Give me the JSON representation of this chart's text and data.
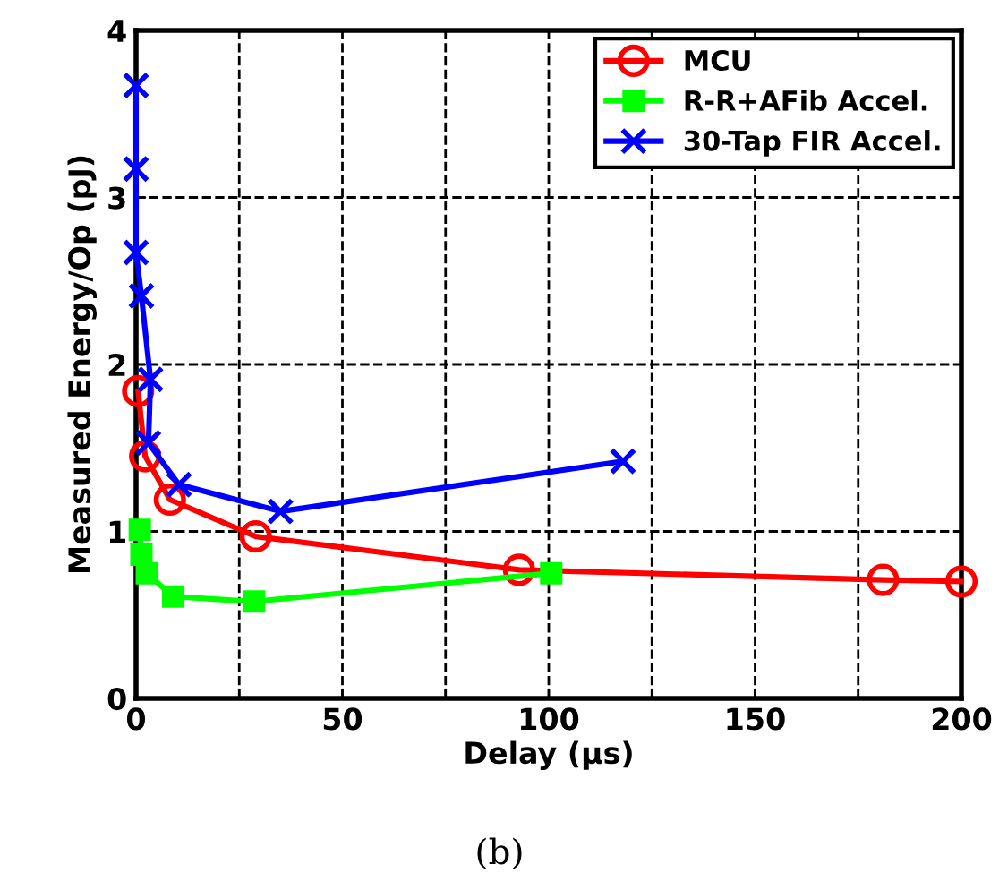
{
  "chart_data": {
    "type": "line",
    "xlabel": "Delay (μs)",
    "ylabel": "Measured Energy/Op (pJ)",
    "xlim": [
      0,
      200
    ],
    "ylim": [
      0,
      4
    ],
    "xticks": [
      0,
      {
        "value": 25,
        "label": null
      },
      50,
      {
        "value": 75,
        "label": null
      },
      100,
      {
        "value": 125,
        "label": null
      },
      150,
      {
        "value": 175,
        "label": null
      },
      200
    ],
    "yticks": [
      0,
      1,
      2,
      3,
      4
    ],
    "grid": true,
    "legend": "top right",
    "line_style": "solid",
    "series": [
      {
        "name": "MCU",
        "color": "#ff0000",
        "marker": "circle",
        "x": [
          0.5,
          2.2,
          8.2,
          29,
          92.8,
          181,
          200
        ],
        "values": [
          1.84,
          1.45,
          1.19,
          0.97,
          0.77,
          0.71,
          0.7
        ]
      },
      {
        "name": "R-R+AFib Accel.",
        "color": "#00ff00",
        "marker": "square",
        "x": [
          0.9,
          1.3,
          2.6,
          9,
          28.6,
          100.6
        ],
        "values": [
          1.01,
          0.86,
          0.75,
          0.61,
          0.58,
          0.75
        ]
      },
      {
        "name": "30-Tap FIR Accel.",
        "color": "#0000ff",
        "marker": "cross",
        "x": [
          0,
          0,
          0,
          1.3,
          3.5,
          3,
          10.4,
          35,
          118
        ],
        "values": [
          3.67,
          3.17,
          2.67,
          2.41,
          1.91,
          1.53,
          1.28,
          1.12,
          1.42
        ]
      }
    ],
    "annotations": [
      "(b)"
    ]
  }
}
